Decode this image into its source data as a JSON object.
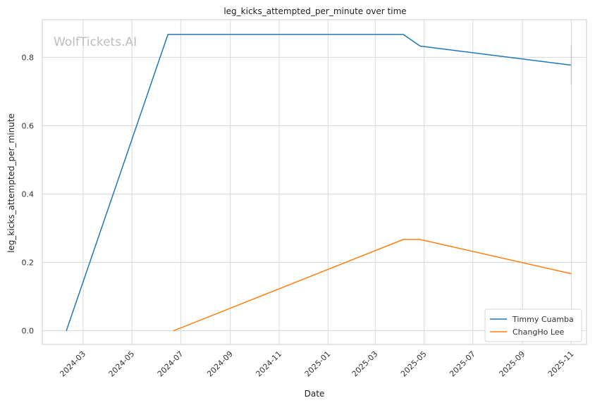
{
  "chart_data": {
    "type": "line",
    "title": "leg_kicks_attempted_per_minute over time",
    "xlabel": "Date",
    "ylabel": "leg_kicks_attempted_per_minute",
    "watermark": "WolfTickets.AI",
    "x_tick_labels": [
      "2024-03",
      "2024-05",
      "2024-07",
      "2024-09",
      "2024-11",
      "2025-01",
      "2025-03",
      "2025-05",
      "2025-07",
      "2025-09",
      "2025-11"
    ],
    "x_tick_dates": [
      "2024-03-01",
      "2024-05-01",
      "2024-07-01",
      "2024-09-01",
      "2024-11-01",
      "2025-01-01",
      "2025-03-01",
      "2025-05-01",
      "2025-07-01",
      "2025-09-01",
      "2025-11-01"
    ],
    "xlim": [
      "2024-01-10",
      "2025-11-20"
    ],
    "y_ticks": [
      0.0,
      0.2,
      0.4,
      0.6,
      0.8
    ],
    "y_tick_labels": [
      "0.0",
      "0.2",
      "0.4",
      "0.6",
      "0.8"
    ],
    "ylim": [
      -0.04,
      0.91
    ],
    "grid": true,
    "legend_position": "bottom-right",
    "series": [
      {
        "name": "Timmy Cuamba",
        "color": "#1f77b4",
        "points": [
          {
            "x": "2024-02-09",
            "y": 0.0
          },
          {
            "x": "2024-06-15",
            "y": 0.867
          },
          {
            "x": "2025-04-05",
            "y": 0.867
          },
          {
            "x": "2025-04-26",
            "y": 0.833
          },
          {
            "x": "2025-11-01",
            "y": 0.777
          }
        ],
        "error_bar": {
          "x": "2025-11-01",
          "low": 0.72,
          "high": 0.835
        }
      },
      {
        "name": "ChangHo Lee",
        "color": "#ff7f0e",
        "points": [
          {
            "x": "2024-06-22",
            "y": 0.0
          },
          {
            "x": "2025-04-05",
            "y": 0.267
          },
          {
            "x": "2025-04-26",
            "y": 0.267
          },
          {
            "x": "2025-11-01",
            "y": 0.167
          }
        ]
      }
    ]
  }
}
